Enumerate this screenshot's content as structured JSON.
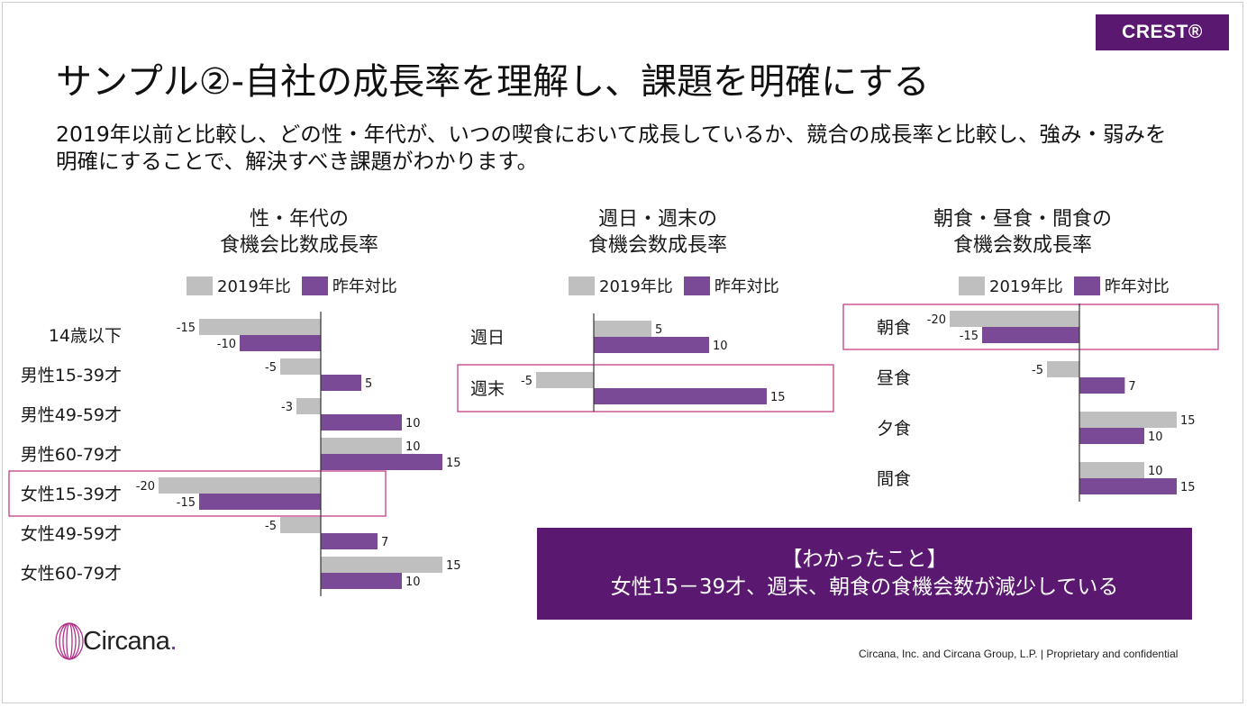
{
  "brand_badge": "CREST®",
  "title": "サンプル②-自社の成長率を理解し、課題を明確にする",
  "subtitle": "2019年以前と比較し、どの性・年代が、いつの喫食において成長しているか、競合の成長率と比較し、強み・弱みを明確にすることで、解決すべき課題がわかります。",
  "colors": {
    "series_2019": "#bfbfbf",
    "series_yoy": "#7b4a97",
    "accent": "#5a1870",
    "highlight_box": "#c0307a"
  },
  "chart_data": [
    {
      "type": "bar",
      "orientation": "horizontal",
      "title_lines": [
        "性・年代の",
        "食機会比数成長率"
      ],
      "categories": [
        "14歳以下",
        "男性15-39才",
        "男性49-59才",
        "男性60-79才",
        "女性15-39才",
        "女性49-59才",
        "女性60-79才"
      ],
      "series": [
        {
          "name": "2019年比",
          "values": [
            -15,
            -5,
            -3,
            10,
            -20,
            -5,
            15
          ]
        },
        {
          "name": "昨年対比",
          "values": [
            -10,
            5,
            10,
            15,
            -15,
            7,
            10
          ]
        }
      ],
      "highlighted_category": "女性15-39才",
      "legend": "top"
    },
    {
      "type": "bar",
      "orientation": "horizontal",
      "title_lines": [
        "週日・週末の",
        "食機会数成長率"
      ],
      "categories": [
        "週日",
        "週末"
      ],
      "series": [
        {
          "name": "2019年比",
          "values": [
            5,
            -5
          ]
        },
        {
          "name": "昨年対比",
          "values": [
            10,
            15
          ]
        }
      ],
      "highlighted_category": "週末",
      "legend": "top"
    },
    {
      "type": "bar",
      "orientation": "horizontal",
      "title_lines": [
        "朝食・昼食・間食の",
        "食機会数成長率"
      ],
      "categories": [
        "朝食",
        "昼食",
        "夕食",
        "間食"
      ],
      "series": [
        {
          "name": "2019年比",
          "values": [
            -20,
            -5,
            15,
            10
          ]
        },
        {
          "name": "昨年対比",
          "values": [
            -15,
            7,
            10,
            15
          ]
        }
      ],
      "highlighted_category": "朝食",
      "legend": "top"
    }
  ],
  "findings": {
    "heading": "【わかったこと】",
    "text": "女性15－39才、週末、朝食の食機会数が減少している"
  },
  "logo": {
    "name": "Circana",
    "dot": "."
  },
  "footer": "Circana, Inc. and Circana Group, L.P. |  Proprietary and confidential"
}
